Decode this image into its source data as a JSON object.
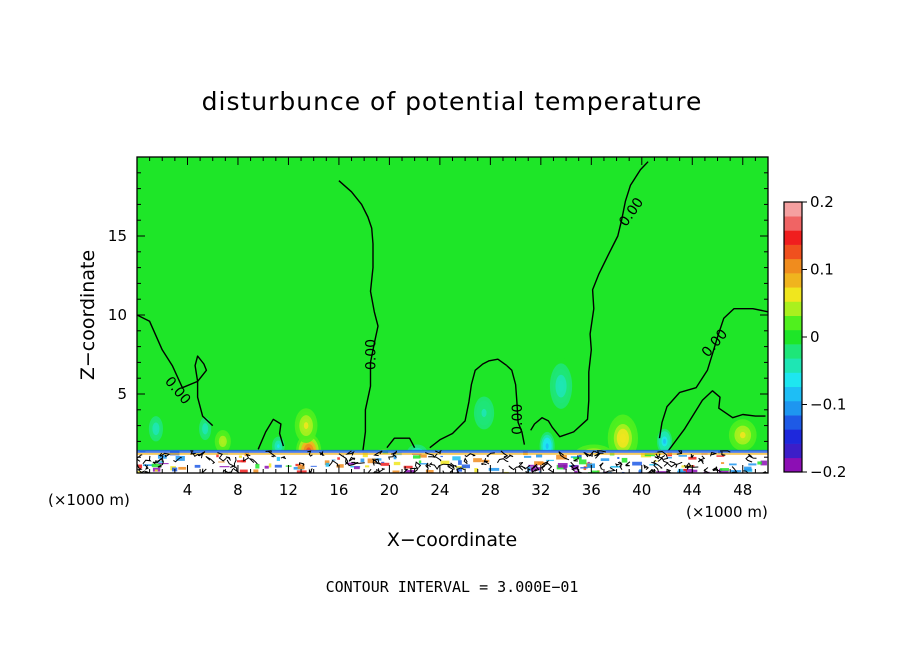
{
  "chart_data": {
    "type": "heatmap",
    "title": "disturbunce of potential temperature",
    "xlabel": "X−coordinate",
    "ylabel": "Z−coordinate",
    "x_unit": "(×1000 m)",
    "y_unit": "(×1000 m)",
    "xlim": [
      0,
      50
    ],
    "ylim": [
      0,
      20
    ],
    "x_ticks": [
      4,
      8,
      12,
      16,
      20,
      24,
      28,
      32,
      36,
      40,
      44,
      48
    ],
    "y_ticks": [
      5,
      10,
      15
    ],
    "caption": "CONTOUR INTERVAL = 3.000E−01",
    "colorbar": {
      "range": [
        -0.2,
        0.2
      ],
      "tick_values": [
        0.2,
        0.1,
        0,
        -0.1,
        -0.2
      ],
      "tick_labels": [
        "0.2",
        "0.1",
        "0",
        "−0.1",
        "−0.2"
      ],
      "colors": [
        "#8c0fb4",
        "#3c1ec8",
        "#1e28dc",
        "#1e5ae6",
        "#1e96f0",
        "#1ebef5",
        "#1ee6f0",
        "#1ee6b4",
        "#1ee678",
        "#1ee628",
        "#50f01e",
        "#aaf01e",
        "#f0e61e",
        "#f0b41e",
        "#f08c1e",
        "#f0501e",
        "#f01e1e",
        "#f06464",
        "#f5a0a0"
      ]
    },
    "contour_labels": [
      {
        "text": "0.00",
        "x": 18.6,
        "z": 7.5
      },
      {
        "text": "0.00",
        "x": 39.2,
        "z": 16.5
      },
      {
        "text": "0.00",
        "x": 45.8,
        "z": 8.2
      },
      {
        "text": "0.00",
        "x": 3.2,
        "z": 5.2
      },
      {
        "text": "0.00",
        "x": 30.2,
        "z": 3.4
      }
    ],
    "contours_zero": [
      {
        "points": [
          [
            0,
            10
          ],
          [
            1,
            9.6
          ],
          [
            2,
            7.8
          ],
          [
            2.8,
            6.8
          ],
          [
            3.6,
            5.4
          ],
          [
            4.8,
            5.8
          ],
          [
            4.8,
            4.8
          ],
          [
            5.2,
            3.6
          ],
          [
            6,
            3
          ]
        ]
      },
      {
        "points": [
          [
            16,
            18.5
          ],
          [
            17,
            17.8
          ],
          [
            17.8,
            17
          ],
          [
            18.3,
            16.2
          ],
          [
            18.6,
            15.5
          ],
          [
            18.7,
            14.5
          ],
          [
            18.7,
            13
          ],
          [
            18.5,
            11.5
          ],
          [
            18.8,
            10.2
          ],
          [
            19.1,
            9.3
          ],
          [
            18.8,
            8.2
          ],
          [
            18.5,
            7
          ],
          [
            18.5,
            5.5
          ],
          [
            18.1,
            4
          ],
          [
            18.1,
            2.6
          ],
          [
            17.9,
            1.4
          ]
        ]
      },
      {
        "points": [
          [
            40.5,
            19.7
          ],
          [
            39.9,
            19.2
          ],
          [
            39.1,
            18.2
          ],
          [
            38.7,
            17.2
          ],
          [
            38.4,
            16
          ],
          [
            38.1,
            15
          ],
          [
            37.4,
            13.9
          ],
          [
            36.6,
            12.6
          ],
          [
            36.1,
            11.6
          ],
          [
            36.2,
            10.4
          ],
          [
            35.9,
            8.8
          ],
          [
            36,
            7.8
          ],
          [
            35.8,
            6.4
          ],
          [
            35.8,
            4.6
          ],
          [
            35.7,
            3.4
          ],
          [
            34.6,
            2.6
          ],
          [
            33.5,
            2.3
          ],
          [
            32.9,
            2.9
          ],
          [
            32.6,
            3.3
          ],
          [
            32.1,
            3.5
          ],
          [
            31.5,
            3.1
          ],
          [
            31.2,
            2.7
          ]
        ]
      },
      {
        "points": [
          [
            50,
            10.2
          ],
          [
            48.8,
            10.4
          ],
          [
            47.3,
            10.4
          ],
          [
            46.5,
            9.8
          ],
          [
            46,
            8.6
          ],
          [
            45.7,
            7.8
          ],
          [
            45.2,
            6.5
          ],
          [
            44.3,
            5.4
          ],
          [
            43,
            5.1
          ],
          [
            42,
            4.2
          ],
          [
            41.6,
            3.2
          ],
          [
            41.4,
            2.2
          ]
        ]
      },
      {
        "points": [
          [
            29.3,
            6.8
          ],
          [
            28.6,
            7.2
          ],
          [
            27.9,
            7.1
          ],
          [
            27.4,
            6.9
          ],
          [
            26.8,
            6.5
          ],
          [
            26.5,
            5.6
          ],
          [
            26.3,
            4.5
          ],
          [
            26,
            3.3
          ],
          [
            25,
            2.5
          ],
          [
            24,
            2.1
          ],
          [
            23.2,
            1.6
          ]
        ]
      },
      {
        "points": [
          [
            29.3,
            6.8
          ],
          [
            29.7,
            6.5
          ],
          [
            30,
            5.6
          ],
          [
            30.1,
            4.5
          ],
          [
            30.2,
            3.2
          ],
          [
            30.5,
            2.6
          ],
          [
            30.7,
            1.8
          ]
        ]
      },
      {
        "points": [
          [
            9.6,
            1.5
          ],
          [
            10.2,
            2.6
          ],
          [
            10.8,
            3.4
          ],
          [
            11.4,
            3.1
          ],
          [
            11.3,
            2.5
          ],
          [
            11.6,
            1.7
          ]
        ]
      },
      {
        "points": [
          [
            42,
            1.3
          ],
          [
            43.4,
            2.8
          ],
          [
            44.8,
            4.6
          ],
          [
            45.6,
            5.2
          ],
          [
            46.2,
            4.8
          ],
          [
            46.1,
            4.1
          ],
          [
            47.2,
            3.5
          ],
          [
            48,
            3.7
          ],
          [
            49,
            3.6
          ],
          [
            49.8,
            3.6
          ]
        ]
      },
      {
        "points": [
          [
            4.8,
            5.8
          ],
          [
            5.5,
            6.5
          ],
          [
            5.3,
            6.9
          ],
          [
            4.8,
            7.4
          ],
          [
            4.6,
            6.8
          ],
          [
            4.8,
            5.8
          ]
        ]
      },
      {
        "points": [
          [
            19.8,
            1.6
          ],
          [
            20.4,
            2.2
          ],
          [
            21.6,
            2.2
          ],
          [
            22,
            1.6
          ]
        ]
      }
    ],
    "features": [
      {
        "kind": "warm",
        "x": 13.6,
        "z": 1.4,
        "sx": 1.0,
        "sz": 1.1,
        "a": 0.13
      },
      {
        "kind": "warm",
        "x": 13.4,
        "z": 3.0,
        "sx": 0.9,
        "sz": 1.1,
        "a": 0.06
      },
      {
        "kind": "warm",
        "x": 38.5,
        "z": 2.2,
        "sx": 1.2,
        "sz": 1.5,
        "a": 0.07
      },
      {
        "kind": "warm",
        "x": 48,
        "z": 2.4,
        "sx": 1.1,
        "sz": 1.0,
        "a": 0.06
      },
      {
        "kind": "warm",
        "x": 6.8,
        "z": 2.0,
        "sx": 0.8,
        "sz": 0.9,
        "a": 0.05
      },
      {
        "kind": "warm",
        "x": 36.2,
        "z": 1.2,
        "sx": 1.5,
        "sz": 0.6,
        "a": 0.07
      },
      {
        "kind": "warm",
        "x": 19.5,
        "z": 1.0,
        "sx": 1.0,
        "sz": 0.5,
        "a": 0.07
      },
      {
        "kind": "cool",
        "x": 33.6,
        "z": 5.5,
        "sx": 1.1,
        "sz": 1.8,
        "a": -0.05
      },
      {
        "kind": "cool",
        "x": 32.5,
        "z": 1.7,
        "sx": 0.6,
        "sz": 0.9,
        "a": -0.09
      },
      {
        "kind": "cool",
        "x": 41.8,
        "z": 2.0,
        "sx": 0.6,
        "sz": 0.8,
        "a": -0.08
      },
      {
        "kind": "cool",
        "x": 1.5,
        "z": 2.8,
        "sx": 0.7,
        "sz": 1.0,
        "a": -0.05
      },
      {
        "kind": "cool",
        "x": 22.2,
        "z": 1.3,
        "sx": 0.8,
        "sz": 0.5,
        "a": -0.06
      },
      {
        "kind": "cool",
        "x": 27.5,
        "z": 3.8,
        "sx": 1.0,
        "sz": 1.3,
        "a": -0.035
      },
      {
        "kind": "cool",
        "x": 5.4,
        "z": 2.8,
        "sx": 0.6,
        "sz": 0.9,
        "a": -0.045
      },
      {
        "kind": "cool",
        "x": 11.2,
        "z": 1.7,
        "sx": 0.5,
        "sz": 0.6,
        "a": -0.06
      }
    ]
  }
}
